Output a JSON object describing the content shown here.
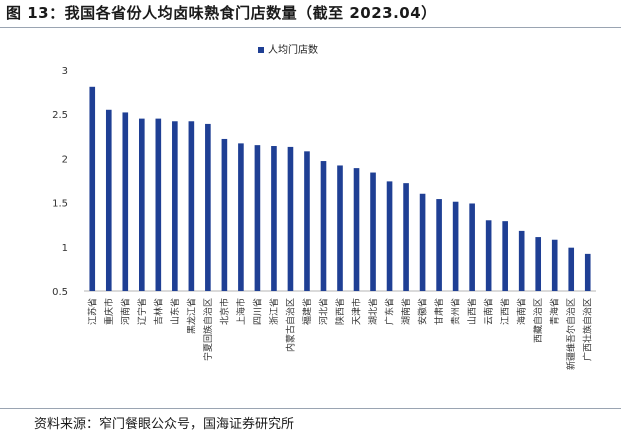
{
  "figure": {
    "title": "图 13：我国各省份人均卤味熟食门店数量（截至 2023.04）",
    "source": "资料来源：窄门餐眼公众号，国海证券研究所"
  },
  "chart_data": {
    "type": "bar",
    "title": "",
    "xlabel": "",
    "ylabel": "",
    "ylim": [
      0.5,
      3
    ],
    "yticks": [
      "0.5",
      "1",
      "1.5",
      "2",
      "2.5",
      "3"
    ],
    "grid": false,
    "legend_position": "top-center",
    "bar_color": "#1f3f94",
    "categories": [
      "江苏省",
      "重庆市",
      "河南省",
      "辽宁省",
      "吉林省",
      "山东省",
      "黑龙江省",
      "宁夏回族自治区",
      "北京市",
      "上海市",
      "四川省",
      "浙江省",
      "内蒙古自治区",
      "福建省",
      "河北省",
      "陕西省",
      "天津市",
      "湖北省",
      "广东省",
      "湖南省",
      "安徽省",
      "甘肃省",
      "贵州省",
      "山西省",
      "云南省",
      "江西省",
      "海南省",
      "西藏自治区",
      "青海省",
      "新疆维吾尔自治区",
      "广西壮族自治区"
    ],
    "series": [
      {
        "name": "人均门店数",
        "values": [
          2.81,
          2.55,
          2.52,
          2.45,
          2.45,
          2.42,
          2.42,
          2.39,
          2.22,
          2.17,
          2.15,
          2.14,
          2.13,
          2.08,
          1.97,
          1.92,
          1.89,
          1.84,
          1.74,
          1.72,
          1.6,
          1.54,
          1.51,
          1.49,
          1.3,
          1.29,
          1.18,
          1.11,
          1.08,
          0.99,
          0.92
        ]
      }
    ]
  }
}
